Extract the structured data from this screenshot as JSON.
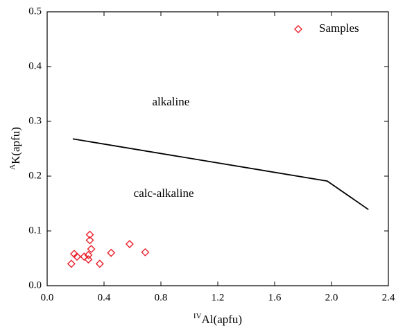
{
  "chart_data": {
    "type": "scatter",
    "series": [
      {
        "name": "Samples",
        "color": "#e8202a",
        "marker": "diamond",
        "x": [
          0.17,
          0.19,
          0.21,
          0.26,
          0.29,
          0.29,
          0.3,
          0.3,
          0.31,
          0.37,
          0.45,
          0.58,
          0.69
        ],
        "values": [
          0.04,
          0.058,
          0.053,
          0.053,
          0.048,
          0.056,
          0.093,
          0.083,
          0.067,
          0.04,
          0.06,
          0.076,
          0.061
        ]
      }
    ],
    "lines": [
      {
        "color": "#000000",
        "x": [
          0.18,
          1.97,
          2.26
        ],
        "values": [
          0.268,
          0.191,
          0.139
        ]
      }
    ],
    "annotations": [
      {
        "text": "alkaline",
        "x": 0.87,
        "y": 0.334
      },
      {
        "text": "calc-alkaline",
        "x": 0.82,
        "y": 0.167
      }
    ],
    "x_label": {
      "superscript": "IV",
      "text": "Al(apfu)"
    },
    "y_label": {
      "superscript": "A",
      "text": "K(apfu)"
    },
    "xlim": [
      0,
      2.4
    ],
    "ylim": [
      0,
      0.5
    ],
    "xticks": [
      {
        "value": 0,
        "label": "0.0"
      },
      0.4,
      0.8,
      1.2,
      1.6,
      {
        "value": 2,
        "label": "2.0"
      },
      2.4
    ],
    "yticks": [
      {
        "value": 0,
        "label": "0.0"
      },
      0.1,
      0.2,
      0.3,
      0.4,
      0.5
    ],
    "legend": "upper right",
    "grid": false
  }
}
